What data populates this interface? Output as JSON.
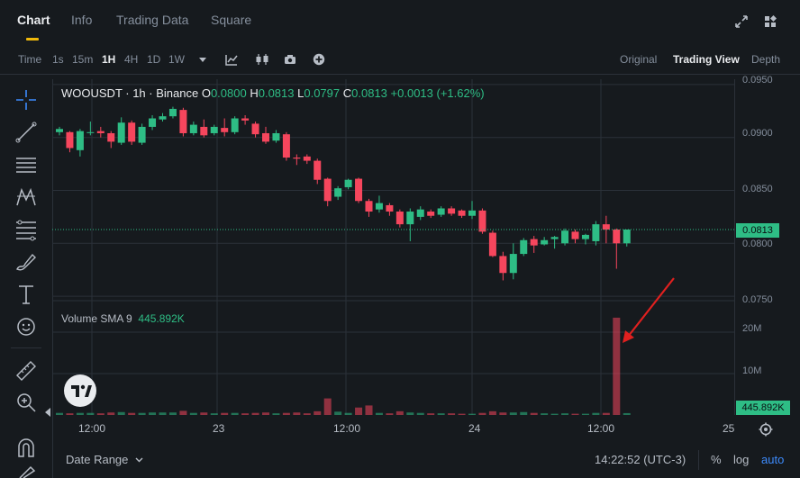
{
  "tabs": [
    {
      "label": "Chart",
      "active": true
    },
    {
      "label": "Info",
      "active": false
    },
    {
      "label": "Trading Data",
      "active": false
    },
    {
      "label": "Square",
      "active": false
    }
  ],
  "timeframes": [
    "Time",
    "1s",
    "15m",
    "1H",
    "4H",
    "1D",
    "1W"
  ],
  "active_timeframe": "1H",
  "views": [
    "Original",
    "Trading View",
    "Depth"
  ],
  "active_view": "Trading View",
  "legend": {
    "symbol": "WOOUSDT · 1h · Binance",
    "open_label": "O",
    "open": "0.0800",
    "high_label": "H",
    "high": "0.0813",
    "low_label": "L",
    "low": "0.0797",
    "close_label": "C",
    "close": "0.0813",
    "change": "+0.0013 (+1.62%)"
  },
  "volume_legend": {
    "name": "Volume SMA 9",
    "value": "445.892K"
  },
  "price_axis": [
    "0.0950",
    "0.0900",
    "0.0850",
    "0.0800",
    "0.0750"
  ],
  "current_price": "0.0813",
  "volume_axis": [
    "20M",
    "10M"
  ],
  "current_volume": "445.892K",
  "time_axis": [
    "12:00",
    "23",
    "12:00",
    "24",
    "12:00",
    "25"
  ],
  "bottom": {
    "date_range": "Date Range",
    "clock": "14:22:52 (UTC-3)",
    "percent": "%",
    "log": "log",
    "auto": "auto"
  },
  "colors": {
    "up": "#2ebd85",
    "down": "#f6465d",
    "accent": "#f0b90b",
    "bg": "#161a1e",
    "grid": "#2b3139"
  },
  "chart_data": {
    "type": "candlestick",
    "price_ylim": [
      0.0745,
      0.0955
    ],
    "volume_ylim": [
      0,
      25
    ],
    "volume_unit": "M",
    "candles": [
      [
        0.0905,
        0.0908,
        0.0902,
        0.091
      ],
      [
        0.0905,
        0.089,
        0.0886,
        0.0906
      ],
      [
        0.0888,
        0.0906,
        0.0882,
        0.0908
      ],
      [
        0.0905,
        0.0905,
        0.0902,
        0.0915
      ],
      [
        0.0906,
        0.0904,
        0.09,
        0.091
      ],
      [
        0.0904,
        0.0896,
        0.089,
        0.0906
      ],
      [
        0.0895,
        0.0914,
        0.0893,
        0.0919
      ],
      [
        0.0914,
        0.0896,
        0.0893,
        0.0916
      ],
      [
        0.0895,
        0.091,
        0.0893,
        0.0913
      ],
      [
        0.091,
        0.0918,
        0.0907,
        0.0921
      ],
      [
        0.0917,
        0.092,
        0.0915,
        0.0923
      ],
      [
        0.092,
        0.0927,
        0.0918,
        0.0929
      ],
      [
        0.0926,
        0.0904,
        0.0901,
        0.0928
      ],
      [
        0.0904,
        0.0912,
        0.0902,
        0.0915
      ],
      [
        0.091,
        0.0902,
        0.09,
        0.0917
      ],
      [
        0.0904,
        0.091,
        0.0902,
        0.0912
      ],
      [
        0.0909,
        0.0905,
        0.0901,
        0.0918
      ],
      [
        0.0905,
        0.0918,
        0.0903,
        0.092
      ],
      [
        0.0918,
        0.0916,
        0.0912,
        0.0921
      ],
      [
        0.0913,
        0.0903,
        0.09,
        0.0915
      ],
      [
        0.0904,
        0.0896,
        0.0894,
        0.091
      ],
      [
        0.0897,
        0.0904,
        0.0895,
        0.0907
      ],
      [
        0.0903,
        0.0881,
        0.0878,
        0.0905
      ],
      [
        0.0881,
        0.088,
        0.0874,
        0.0884
      ],
      [
        0.0882,
        0.0878,
        0.0875,
        0.0884
      ],
      [
        0.0878,
        0.086,
        0.0856,
        0.088
      ],
      [
        0.0861,
        0.084,
        0.0835,
        0.0862
      ],
      [
        0.0844,
        0.0852,
        0.0841,
        0.0854
      ],
      [
        0.0853,
        0.086,
        0.0851,
        0.0861
      ],
      [
        0.0861,
        0.084,
        0.0838,
        0.0862
      ],
      [
        0.084,
        0.083,
        0.0825,
        0.0842
      ],
      [
        0.0832,
        0.0838,
        0.0829,
        0.0845
      ],
      [
        0.0836,
        0.083,
        0.0826,
        0.0838
      ],
      [
        0.083,
        0.0818,
        0.0815,
        0.0832
      ],
      [
        0.0818,
        0.083,
        0.0802,
        0.0833
      ],
      [
        0.0825,
        0.0832,
        0.0822,
        0.0835
      ],
      [
        0.083,
        0.0826,
        0.0824,
        0.0832
      ],
      [
        0.0827,
        0.0833,
        0.0825,
        0.0835
      ],
      [
        0.0833,
        0.0828,
        0.0826,
        0.0835
      ],
      [
        0.0831,
        0.0826,
        0.0824,
        0.0832
      ],
      [
        0.0826,
        0.0831,
        0.0823,
        0.084
      ],
      [
        0.0831,
        0.0811,
        0.0809,
        0.0833
      ],
      [
        0.081,
        0.0788,
        0.0787,
        0.0812
      ],
      [
        0.0788,
        0.0772,
        0.0765,
        0.0792
      ],
      [
        0.0772,
        0.079,
        0.0766,
        0.08
      ],
      [
        0.079,
        0.0803,
        0.0788,
        0.0805
      ],
      [
        0.0804,
        0.0798,
        0.0791,
        0.0807
      ],
      [
        0.0799,
        0.0803,
        0.0798,
        0.0806
      ],
      [
        0.0804,
        0.0806,
        0.0795,
        0.0807
      ],
      [
        0.08,
        0.0812,
        0.0798,
        0.0814
      ],
      [
        0.0811,
        0.0804,
        0.08,
        0.0813
      ],
      [
        0.0804,
        0.0808,
        0.0799,
        0.0809
      ],
      [
        0.0802,
        0.0818,
        0.0798,
        0.0821
      ],
      [
        0.0818,
        0.0813,
        0.08,
        0.0826
      ],
      [
        0.0813,
        0.08,
        0.0776,
        0.0814
      ],
      [
        0.08,
        0.0813,
        0.0797,
        0.0813
      ]
    ],
    "volumes": [
      0.5,
      0.4,
      0.5,
      0.5,
      0.4,
      0.6,
      0.7,
      0.5,
      0.5,
      0.6,
      0.6,
      0.6,
      1.0,
      0.5,
      0.6,
      0.4,
      0.5,
      0.5,
      0.4,
      0.5,
      0.6,
      0.4,
      0.5,
      0.6,
      0.4,
      0.9,
      4.0,
      0.8,
      0.5,
      1.8,
      2.3,
      0.5,
      0.4,
      0.9,
      0.6,
      0.5,
      0.4,
      0.4,
      0.4,
      0.3,
      0.3,
      0.5,
      0.9,
      0.6,
      0.6,
      0.7,
      0.5,
      0.4,
      0.3,
      0.4,
      0.3,
      0.3,
      0.5,
      0.5,
      23.5,
      0.45
    ]
  }
}
